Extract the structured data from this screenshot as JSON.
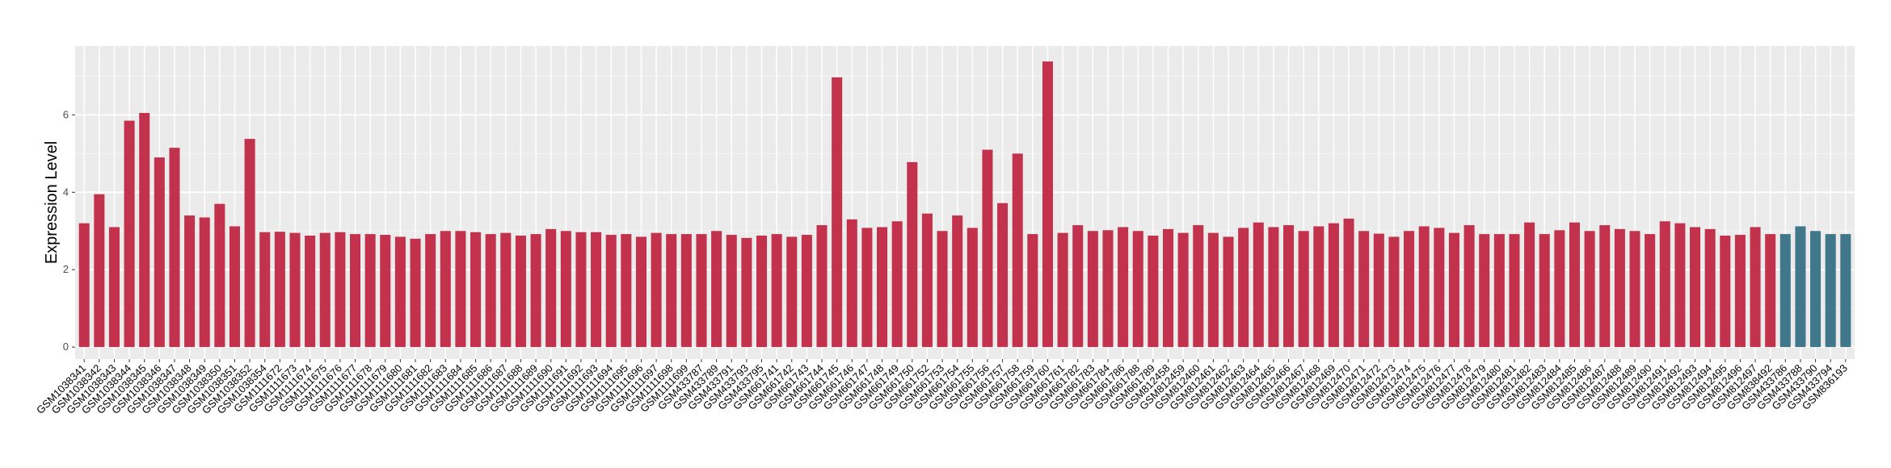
{
  "chart_data": {
    "type": "bar",
    "ylabel": "Expression Level",
    "categories": [
      "GSM1038341",
      "GSM1038342",
      "GSM1038343",
      "GSM1038344",
      "GSM1038345",
      "GSM1038346",
      "GSM1038347",
      "GSM1038348",
      "GSM1038349",
      "GSM1038350",
      "GSM1038351",
      "GSM1038352",
      "GSM1038354",
      "GSM1111672",
      "GSM1111673",
      "GSM1111674",
      "GSM1111675",
      "GSM1111676",
      "GSM1111677",
      "GSM1111678",
      "GSM1111679",
      "GSM1111680",
      "GSM1111681",
      "GSM1111682",
      "GSM1111683",
      "GSM1111684",
      "GSM1111685",
      "GSM1111686",
      "GSM1111687",
      "GSM1111688",
      "GSM1111689",
      "GSM1111690",
      "GSM1111691",
      "GSM1111692",
      "GSM1111693",
      "GSM1111694",
      "GSM1111695",
      "GSM1111696",
      "GSM1111697",
      "GSM1111698",
      "GSM1111699",
      "GSM433787",
      "GSM433789",
      "GSM433791",
      "GSM433793",
      "GSM433795",
      "GSM661741",
      "GSM661742",
      "GSM661743",
      "GSM661744",
      "GSM661745",
      "GSM661746",
      "GSM661747",
      "GSM661748",
      "GSM661749",
      "GSM661750",
      "GSM661752",
      "GSM661753",
      "GSM661754",
      "GSM661755",
      "GSM661756",
      "GSM661757",
      "GSM661758",
      "GSM661759",
      "GSM661760",
      "GSM661761",
      "GSM661782",
      "GSM661783",
      "GSM661784",
      "GSM661786",
      "GSM661788",
      "GSM661789",
      "GSM812458",
      "GSM812459",
      "GSM812460",
      "GSM812461",
      "GSM812462",
      "GSM812463",
      "GSM812464",
      "GSM812465",
      "GSM812466",
      "GSM812467",
      "GSM812468",
      "GSM812469",
      "GSM812470",
      "GSM812471",
      "GSM812472",
      "GSM812473",
      "GSM812474",
      "GSM812475",
      "GSM812476",
      "GSM812477",
      "GSM812478",
      "GSM812479",
      "GSM812480",
      "GSM812481",
      "GSM812482",
      "GSM812483",
      "GSM812484",
      "GSM812485",
      "GSM812486",
      "GSM812487",
      "GSM812488",
      "GSM812489",
      "GSM812490",
      "GSM812491",
      "GSM812492",
      "GSM812493",
      "GSM812494",
      "GSM812495",
      "GSM812496",
      "GSM812497",
      "GSM838492",
      "GSM433786",
      "GSM433788",
      "GSM433790",
      "GSM433794",
      "GSM836193"
    ],
    "values": [
      3.2,
      3.95,
      3.1,
      5.85,
      6.05,
      4.9,
      5.15,
      3.4,
      3.35,
      3.7,
      3.12,
      5.38,
      2.97,
      2.98,
      2.95,
      2.88,
      2.95,
      2.97,
      2.92,
      2.92,
      2.9,
      2.85,
      2.8,
      2.92,
      3.0,
      3.0,
      2.97,
      2.92,
      2.95,
      2.88,
      2.92,
      3.05,
      3.0,
      2.97,
      2.97,
      2.9,
      2.92,
      2.85,
      2.95,
      2.92,
      2.92,
      2.92,
      3.0,
      2.9,
      2.82,
      2.88,
      2.92,
      2.85,
      2.9,
      3.15,
      6.97,
      3.3,
      3.08,
      3.1,
      3.25,
      4.78,
      3.45,
      3.0,
      3.4,
      3.08,
      5.1,
      3.72,
      5.0,
      2.92,
      7.38,
      2.95,
      3.15,
      3.0,
      3.02,
      3.1,
      3.0,
      2.88,
      3.05,
      2.95,
      3.15,
      2.95,
      2.85,
      3.08,
      3.22,
      3.1,
      3.15,
      3.0,
      3.12,
      3.2,
      3.32,
      3.0,
      2.93,
      2.85,
      3.0,
      3.12,
      3.08,
      2.95,
      3.15,
      2.92,
      2.92,
      2.92,
      3.22,
      2.92,
      3.02,
      3.22,
      3.0,
      3.15,
      3.05,
      3.0,
      2.92,
      3.25,
      3.2,
      3.1,
      3.05,
      2.88,
      2.9,
      3.1,
      2.92,
      2.92,
      3.12,
      3.0,
      2.92,
      2.92
    ],
    "colors": [
      "#c2324c",
      "#c2324c",
      "#c2324c",
      "#c2324c",
      "#c2324c",
      "#c2324c",
      "#c2324c",
      "#c2324c",
      "#c2324c",
      "#c2324c",
      "#c2324c",
      "#c2324c",
      "#c2324c",
      "#c2324c",
      "#c2324c",
      "#c2324c",
      "#c2324c",
      "#c2324c",
      "#c2324c",
      "#c2324c",
      "#c2324c",
      "#c2324c",
      "#c2324c",
      "#c2324c",
      "#c2324c",
      "#c2324c",
      "#c2324c",
      "#c2324c",
      "#c2324c",
      "#c2324c",
      "#c2324c",
      "#c2324c",
      "#c2324c",
      "#c2324c",
      "#c2324c",
      "#c2324c",
      "#c2324c",
      "#c2324c",
      "#c2324c",
      "#c2324c",
      "#c2324c",
      "#c2324c",
      "#c2324c",
      "#c2324c",
      "#c2324c",
      "#c2324c",
      "#c2324c",
      "#c2324c",
      "#c2324c",
      "#c2324c",
      "#c2324c",
      "#c2324c",
      "#c2324c",
      "#c2324c",
      "#c2324c",
      "#c2324c",
      "#c2324c",
      "#c2324c",
      "#c2324c",
      "#c2324c",
      "#c2324c",
      "#c2324c",
      "#c2324c",
      "#c2324c",
      "#c2324c",
      "#c2324c",
      "#c2324c",
      "#c2324c",
      "#c2324c",
      "#c2324c",
      "#c2324c",
      "#c2324c",
      "#c2324c",
      "#c2324c",
      "#c2324c",
      "#c2324c",
      "#c2324c",
      "#c2324c",
      "#c2324c",
      "#c2324c",
      "#c2324c",
      "#c2324c",
      "#c2324c",
      "#c2324c",
      "#c2324c",
      "#c2324c",
      "#c2324c",
      "#c2324c",
      "#c2324c",
      "#c2324c",
      "#c2324c",
      "#c2324c",
      "#c2324c",
      "#c2324c",
      "#c2324c",
      "#c2324c",
      "#c2324c",
      "#c2324c",
      "#c2324c",
      "#c2324c",
      "#c2324c",
      "#c2324c",
      "#c2324c",
      "#c2324c",
      "#c2324c",
      "#c2324c",
      "#c2324c",
      "#c2324c",
      "#c2324c",
      "#c2324c",
      "#c2324c",
      "#c2324c",
      "#c2324c",
      "#41778a",
      "#41778a",
      "#41778a",
      "#41778a",
      "#41778a"
    ],
    "ylim": [
      -0.31,
      7.78
    ],
    "yticks": [
      0,
      2,
      4,
      6
    ],
    "grid": true
  }
}
